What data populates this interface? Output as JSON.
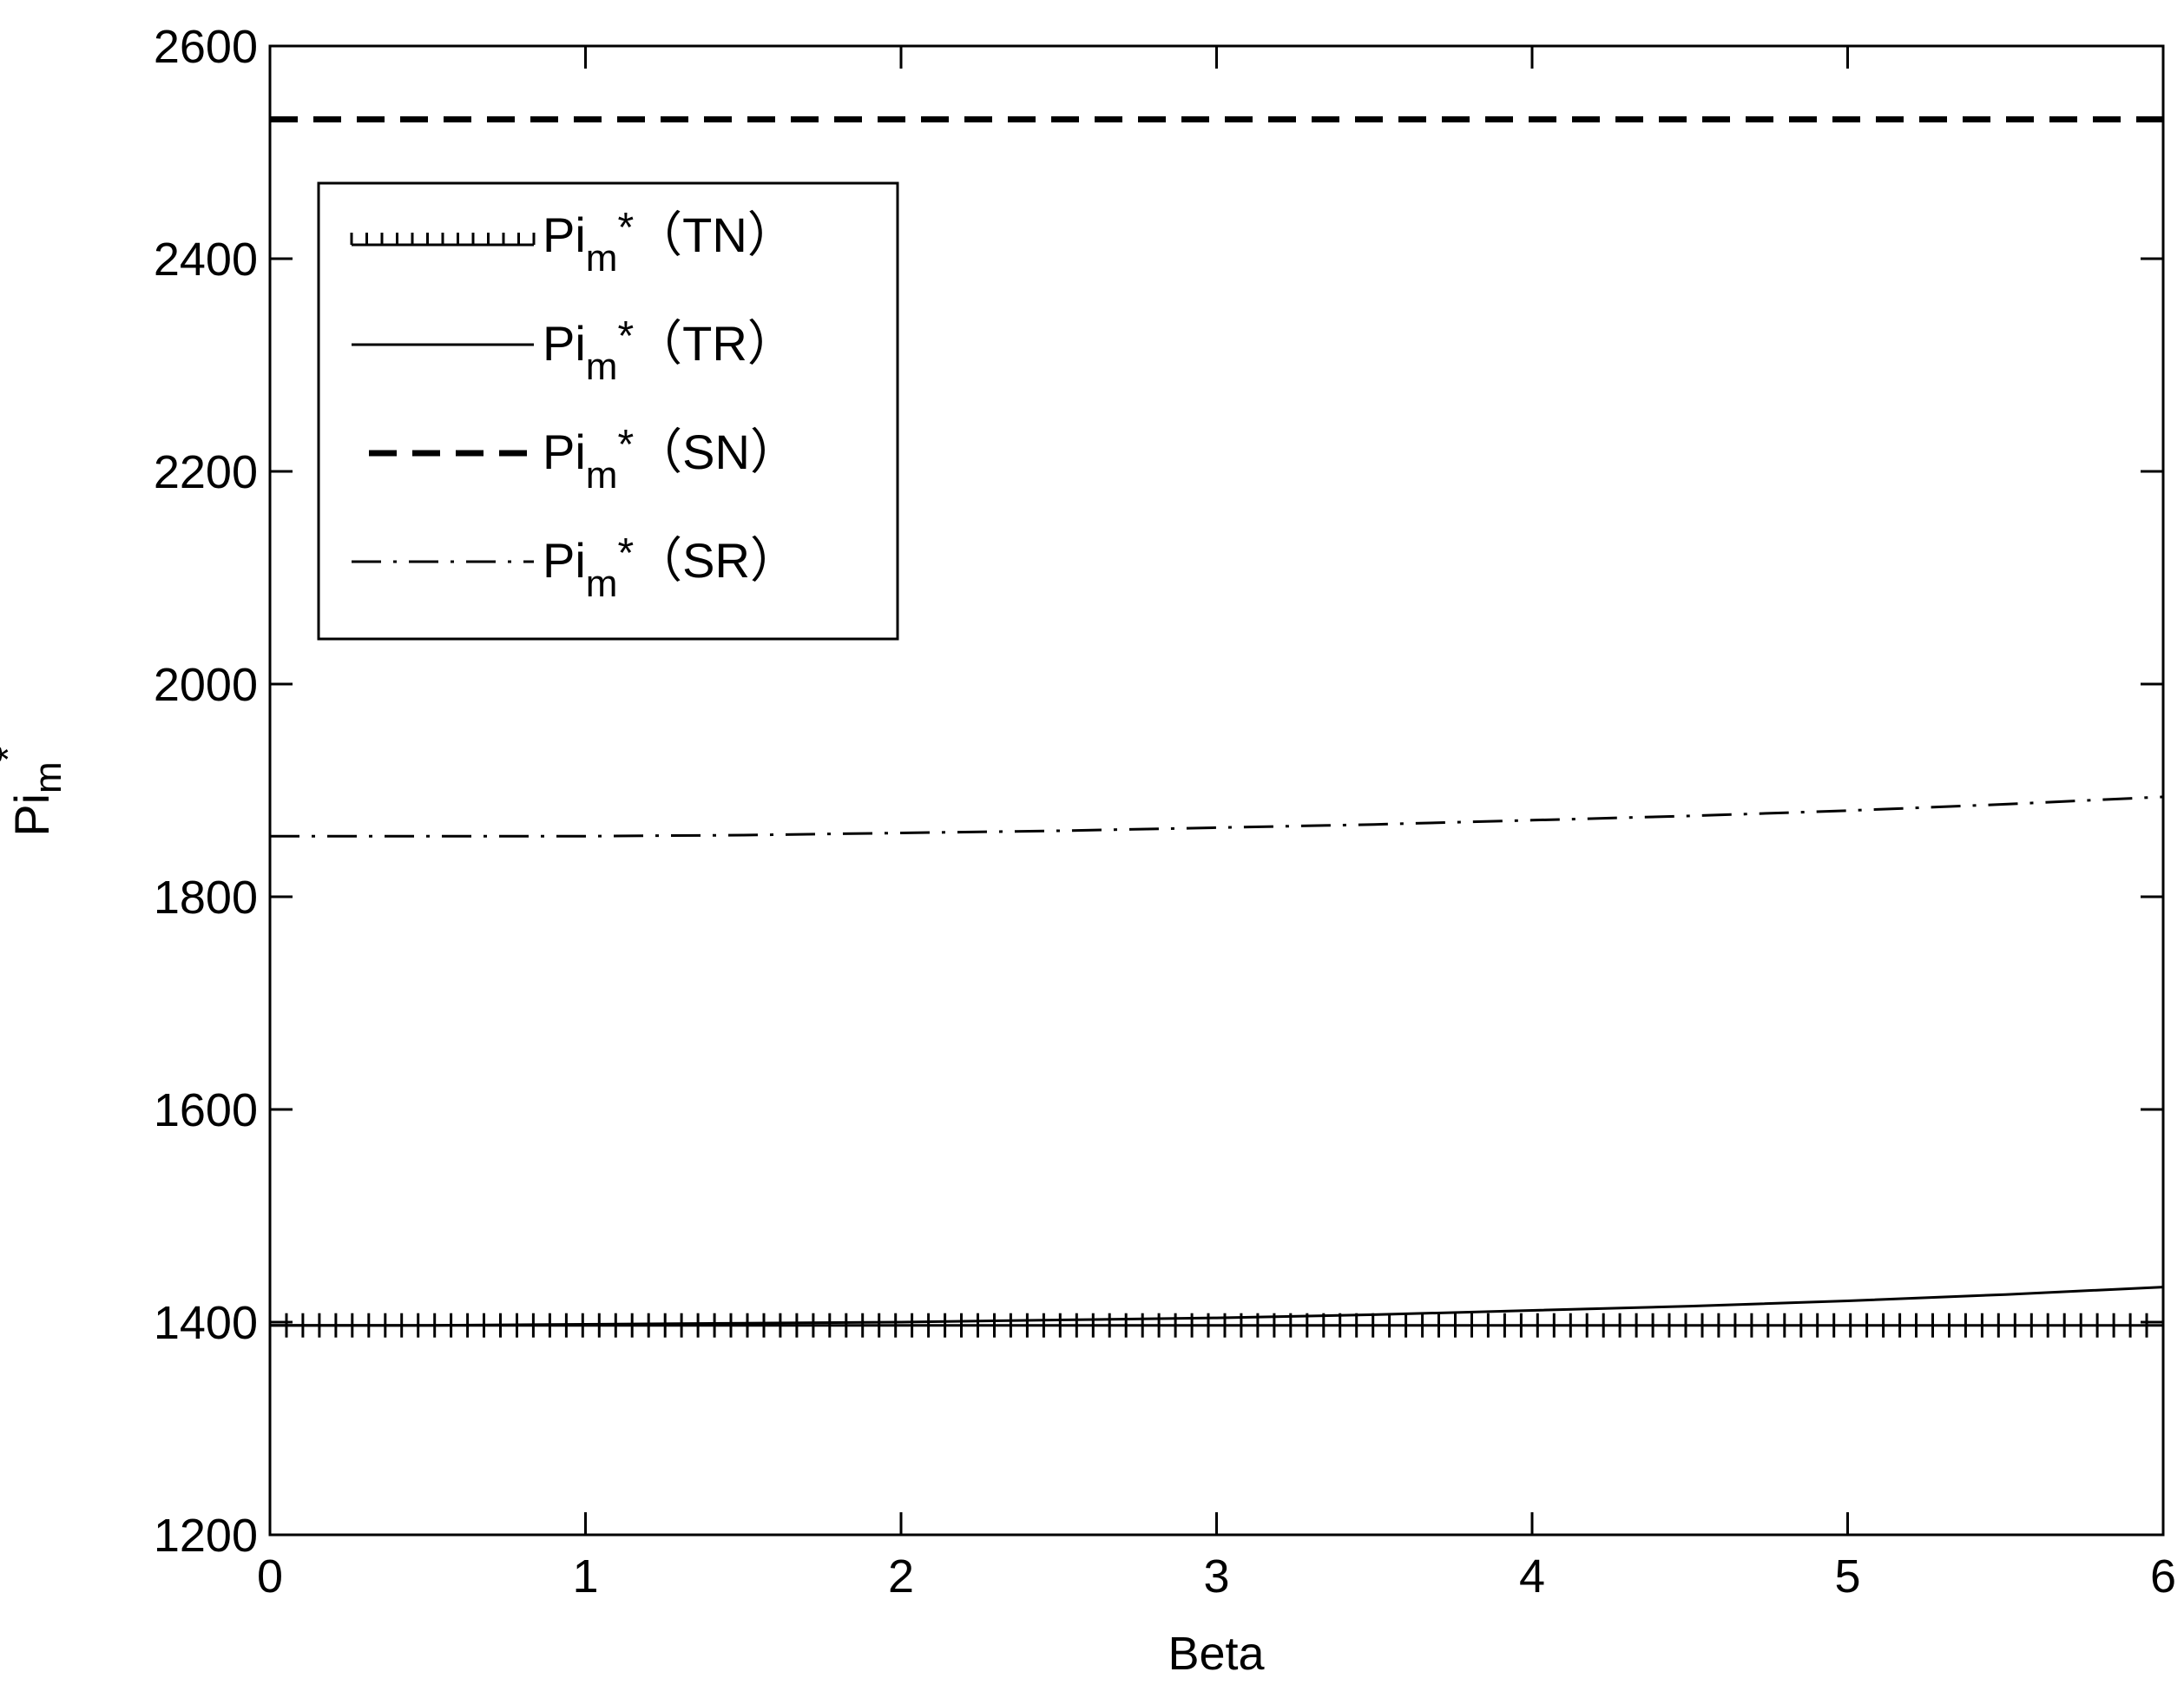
{
  "chart_data": {
    "type": "line",
    "xlabel": "Beta",
    "ylabel": {
      "base": "Pi",
      "sub": "m",
      "sup": "*"
    },
    "xlim": [
      0,
      6
    ],
    "ylim": [
      1200,
      2600
    ],
    "xticks": [
      0,
      1,
      2,
      3,
      4,
      5,
      6
    ],
    "yticks": [
      1200,
      1400,
      1600,
      1800,
      2000,
      2200,
      2400,
      2600
    ],
    "xtick_labels": [
      "0",
      "1",
      "2",
      "3",
      "4",
      "5",
      "6"
    ],
    "ytick_labels": [
      "1200",
      "1400",
      "1600",
      "1800",
      "2000",
      "2200",
      "2400",
      "2600"
    ],
    "grid": false,
    "legend_position": "top-left",
    "series": [
      {
        "name": "TN",
        "label": {
          "base": "Pi",
          "sub": "m",
          "sup": "*",
          "tag": "（TN）"
        },
        "style": "dotted",
        "x": [
          0,
          1,
          2,
          3,
          4,
          5,
          6
        ],
        "y": [
          1397,
          1397,
          1397,
          1397,
          1397,
          1397,
          1397
        ]
      },
      {
        "name": "TR",
        "label": {
          "base": "Pi",
          "sub": "m",
          "sup": "*",
          "tag": "（TR）"
        },
        "style": "solid",
        "x": [
          0,
          0.5,
          1,
          1.5,
          2,
          2.5,
          3,
          3.5,
          4,
          4.5,
          5,
          5.5,
          6
        ],
        "y": [
          1397,
          1397,
          1398,
          1399,
          1400,
          1402,
          1404,
          1407,
          1411,
          1415,
          1420,
          1426,
          1433
        ]
      },
      {
        "name": "SN",
        "label": {
          "base": "Pi",
          "sub": "m",
          "sup": "*",
          "tag": "（SN）"
        },
        "style": "dashed",
        "x": [
          0,
          6
        ],
        "y": [
          2531,
          2531
        ]
      },
      {
        "name": "SR",
        "label": {
          "base": "Pi",
          "sub": "m",
          "sup": "*",
          "tag": "（SR）"
        },
        "style": "dashdot",
        "x": [
          0,
          0.5,
          1,
          1.5,
          2,
          2.5,
          3,
          3.5,
          4,
          4.5,
          5,
          5.5,
          6
        ],
        "y": [
          1857,
          1857,
          1857,
          1858,
          1860,
          1862,
          1865,
          1868,
          1872,
          1876,
          1881,
          1887,
          1894
        ]
      }
    ]
  }
}
